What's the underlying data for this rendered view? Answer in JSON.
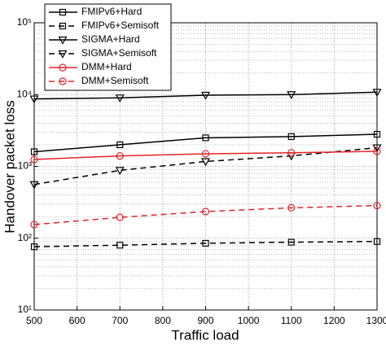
{
  "chart_data": {
    "type": "line",
    "x_label": "Traffic load",
    "y_label": "Handover packet loss",
    "x": [
      500,
      700,
      900,
      1100,
      1300
    ],
    "xlim": [
      500,
      1300
    ],
    "xticks": [
      500,
      600,
      700,
      800,
      900,
      1000,
      1100,
      1200,
      1300
    ],
    "ylim": [
      10,
      100000
    ],
    "log_y": true,
    "grid": true,
    "legend": "upper left",
    "yticks": [
      {
        "value": 10,
        "label": "10¹"
      },
      {
        "value": 100,
        "label": "10²"
      },
      {
        "value": 1000,
        "label": "10³"
      },
      {
        "value": 10000,
        "label": "10⁴"
      },
      {
        "value": 100000,
        "label": "10⁵"
      }
    ],
    "series": [
      {
        "name": "FMIPv6+Hard",
        "color": "#000000",
        "dash": "solid",
        "marker": "square",
        "values": [
          1600,
          2000,
          2500,
          2600,
          2800
        ]
      },
      {
        "name": "FMIPv6+Semisoft",
        "color": "#000000",
        "dash": "dashed",
        "marker": "square",
        "values": [
          76,
          80,
          85,
          88,
          90
        ]
      },
      {
        "name": "SIGMA+Hard",
        "color": "#000000",
        "dash": "solid",
        "marker": "triangle-down",
        "values": [
          8700,
          9000,
          9800,
          10000,
          10800
        ]
      },
      {
        "name": "SIGMA+Semisoft",
        "color": "#000000",
        "dash": "dashed",
        "marker": "triangle-down",
        "values": [
          560,
          880,
          1170,
          1400,
          1820
        ]
      },
      {
        "name": "DMM+Hard",
        "color": "#e3242b",
        "dash": "solid",
        "marker": "circle",
        "values": [
          1250,
          1400,
          1500,
          1550,
          1620
        ]
      },
      {
        "name": "DMM+Semisoft",
        "color": "#e3242b",
        "dash": "dashed",
        "marker": "circle",
        "values": [
          155,
          195,
          235,
          265,
          285
        ]
      }
    ]
  }
}
